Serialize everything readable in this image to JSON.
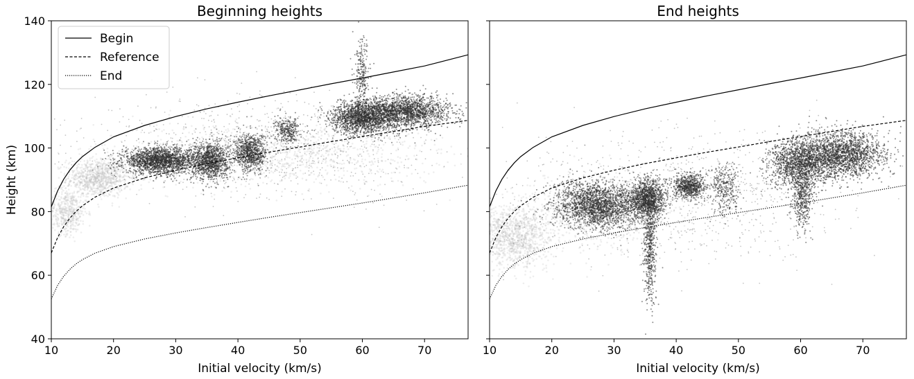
{
  "chart_data": [
    {
      "type": "scatter",
      "title": "Beginning heights",
      "xlabel": "Initial velocity (km/s)",
      "ylabel": "Height (km)",
      "xlim": [
        10,
        77
      ],
      "ylim": [
        40,
        140
      ],
      "xticks": [
        "10",
        "20",
        "30",
        "40",
        "50",
        "60",
        "70"
      ],
      "yticks": [
        "40",
        "60",
        "80",
        "100",
        "120",
        "140"
      ],
      "grid": false,
      "legend_position": "top-left",
      "lines": [
        {
          "name": "Begin",
          "style": "solid",
          "x": [
            10,
            11,
            12,
            13,
            14,
            15,
            17,
            20,
            25,
            30,
            35,
            40,
            45,
            50,
            55,
            60,
            65,
            70,
            77
          ],
          "y": [
            81.5,
            86.5,
            90.2,
            93.1,
            95.4,
            97.3,
            100.2,
            103.5,
            107.1,
            109.9,
            112.3,
            114.4,
            116.4,
            118.3,
            120.2,
            122.0,
            123.9,
            125.8,
            129.3
          ]
        },
        {
          "name": "Reference",
          "style": "dashed",
          "x": [
            10,
            11,
            12,
            13,
            14,
            15,
            17,
            20,
            25,
            30,
            35,
            40,
            45,
            50,
            55,
            60,
            65,
            70,
            77
          ],
          "y": [
            67,
            71.8,
            75.3,
            78.0,
            80.1,
            81.8,
            84.5,
            87.4,
            90.6,
            93.0,
            95.1,
            96.9,
            98.7,
            100.3,
            102.0,
            103.6,
            105.2,
            106.8,
            108.7
          ]
        },
        {
          "name": "End",
          "style": "dotted",
          "x": [
            10,
            11,
            12,
            13,
            14,
            15,
            17,
            20,
            25,
            30,
            35,
            40,
            45,
            50,
            55,
            60,
            65,
            70,
            77
          ],
          "y": [
            52.5,
            56.8,
            59.7,
            61.9,
            63.6,
            64.9,
            66.9,
            69.0,
            71.4,
            73.3,
            75.0,
            76.6,
            78.2,
            79.7,
            81.2,
            82.7,
            84.3,
            85.9,
            88.3
          ]
        }
      ],
      "clusters": [
        {
          "x": 17.5,
          "y": 90.5,
          "sx": 2.5,
          "sy": 3.0,
          "n": 900,
          "shade": "light"
        },
        {
          "x": 12.5,
          "y": 80,
          "sx": 1.6,
          "sy": 3.5,
          "n": 500,
          "shade": "light"
        },
        {
          "x": 45,
          "y": 98,
          "sx": 14,
          "sy": 5,
          "n": 1100,
          "shade": "light"
        },
        {
          "x": 27.5,
          "y": 96,
          "sx": 3.0,
          "sy": 2.0,
          "n": 1900,
          "shade": "dark"
        },
        {
          "x": 35.5,
          "y": 96,
          "sx": 1.5,
          "sy": 3.0,
          "n": 1100,
          "shade": "dark"
        },
        {
          "x": 42,
          "y": 98.5,
          "sx": 1.3,
          "sy": 3.0,
          "n": 800,
          "shade": "dark"
        },
        {
          "x": 48,
          "y": 105.5,
          "sx": 1.0,
          "sy": 2.0,
          "n": 300,
          "shade": "dark"
        },
        {
          "x": 60,
          "y": 109.5,
          "sx": 2.5,
          "sy": 2.5,
          "n": 1600,
          "shade": "dark"
        },
        {
          "x": 60,
          "y": 122,
          "sx": 0.6,
          "sy": 6.0,
          "n": 250,
          "shade": "dark"
        },
        {
          "x": 67,
          "y": 111.5,
          "sx": 3.5,
          "sy": 2.5,
          "n": 1800,
          "shade": "dark"
        },
        {
          "x": 45,
          "y": 100,
          "sx": 15,
          "sy": 8,
          "n": 900,
          "shade": "sparse"
        }
      ]
    },
    {
      "type": "scatter",
      "title": "End heights",
      "xlabel": "Initial velocity (km/s)",
      "ylabel": "",
      "xlim": [
        10,
        77
      ],
      "ylim": [
        40,
        140
      ],
      "xticks": [
        "10",
        "20",
        "30",
        "40",
        "50",
        "60",
        "70"
      ],
      "grid": false,
      "lines": [
        {
          "name": "Begin",
          "style": "solid",
          "x": [
            10,
            11,
            12,
            13,
            14,
            15,
            17,
            20,
            25,
            30,
            35,
            40,
            45,
            50,
            55,
            60,
            65,
            70,
            77
          ],
          "y": [
            81.5,
            86.5,
            90.2,
            93.1,
            95.4,
            97.3,
            100.2,
            103.5,
            107.1,
            109.9,
            112.3,
            114.4,
            116.4,
            118.3,
            120.2,
            122.0,
            123.9,
            125.8,
            129.3
          ]
        },
        {
          "name": "Reference",
          "style": "dashed",
          "x": [
            10,
            11,
            12,
            13,
            14,
            15,
            17,
            20,
            25,
            30,
            35,
            40,
            45,
            50,
            55,
            60,
            65,
            70,
            77
          ],
          "y": [
            67,
            71.8,
            75.3,
            78.0,
            80.1,
            81.8,
            84.5,
            87.4,
            90.6,
            93.0,
            95.1,
            96.9,
            98.7,
            100.3,
            102.0,
            103.6,
            105.2,
            106.8,
            108.7
          ]
        },
        {
          "name": "End",
          "style": "dotted",
          "x": [
            10,
            11,
            12,
            13,
            14,
            15,
            17,
            20,
            25,
            30,
            35,
            40,
            45,
            50,
            55,
            60,
            65,
            70,
            77
          ],
          "y": [
            52.5,
            56.8,
            59.7,
            61.9,
            63.6,
            64.9,
            66.9,
            69.0,
            71.4,
            73.3,
            75.0,
            76.6,
            78.2,
            79.7,
            81.2,
            82.7,
            84.3,
            85.9,
            88.3
          ]
        }
      ],
      "clusters": [
        {
          "x": 14,
          "y": 72,
          "sx": 3.0,
          "sy": 5.0,
          "n": 1100,
          "shade": "light"
        },
        {
          "x": 28,
          "y": 80,
          "sx": 6,
          "sy": 6,
          "n": 700,
          "shade": "light"
        },
        {
          "x": 27.5,
          "y": 82,
          "sx": 3.5,
          "sy": 3.5,
          "n": 2100,
          "shade": "dark"
        },
        {
          "x": 35.5,
          "y": 84,
          "sx": 1.4,
          "sy": 3.0,
          "n": 1200,
          "shade": "dark"
        },
        {
          "x": 35.7,
          "y": 68,
          "sx": 0.5,
          "sy": 9.0,
          "n": 500,
          "shade": "dark"
        },
        {
          "x": 42,
          "y": 88,
          "sx": 1.3,
          "sy": 2.0,
          "n": 700,
          "shade": "dark"
        },
        {
          "x": 48,
          "y": 87,
          "sx": 1.2,
          "sy": 4.0,
          "n": 300,
          "shade": "dark"
        },
        {
          "x": 60,
          "y": 95,
          "sx": 2.5,
          "sy": 4.0,
          "n": 1600,
          "shade": "dark"
        },
        {
          "x": 60.3,
          "y": 84,
          "sx": 0.8,
          "sy": 4.5,
          "n": 400,
          "shade": "dark"
        },
        {
          "x": 67,
          "y": 98,
          "sx": 3.2,
          "sy": 3.5,
          "n": 1800,
          "shade": "dark"
        },
        {
          "x": 40,
          "y": 85,
          "sx": 14,
          "sy": 10,
          "n": 1000,
          "shade": "sparse"
        }
      ]
    }
  ]
}
